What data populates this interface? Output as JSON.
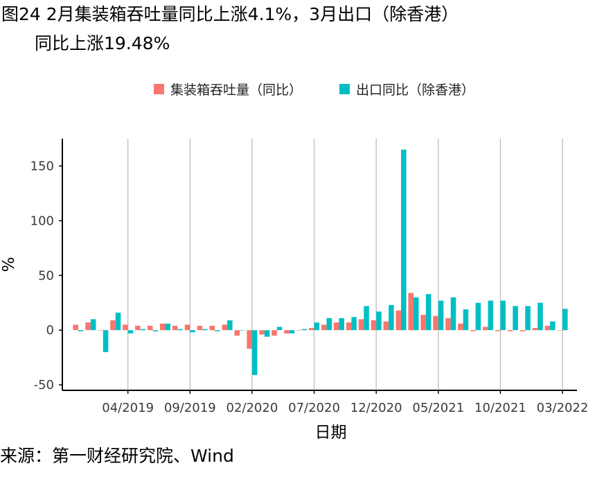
{
  "figure": {
    "title_line1": "图24 2月集装箱吞吐量同比上涨4.1%，3月出口（除香港）",
    "title_line2": "同比上涨19.48%",
    "source": "来源：第一财经研究院、Wind"
  },
  "chart_data": {
    "type": "bar",
    "xlabel": "日期",
    "ylabel": "%",
    "ylim": [
      -55,
      175
    ],
    "y_ticks": [
      -50,
      0,
      50,
      100,
      150
    ],
    "x_tick_labels": [
      "04/2019",
      "09/2019",
      "02/2020",
      "07/2020",
      "12/2020",
      "05/2021",
      "10/2021",
      "03/2022"
    ],
    "x_tick_months": [
      "2019-04",
      "2019-09",
      "2020-02",
      "2020-07",
      "2020-12",
      "2021-05",
      "2021-10",
      "2022-03"
    ],
    "grid": "vertical lines at x ticks",
    "legend_position": "top",
    "months": [
      "2018-12",
      "2019-01",
      "2019-02",
      "2019-03",
      "2019-04",
      "2019-05",
      "2019-06",
      "2019-07",
      "2019-08",
      "2019-09",
      "2019-10",
      "2019-11",
      "2019-12",
      "2020-01",
      "2020-02",
      "2020-03",
      "2020-04",
      "2020-05",
      "2020-06",
      "2020-07",
      "2020-08",
      "2020-09",
      "2020-10",
      "2020-11",
      "2020-12",
      "2021-01",
      "2021-02",
      "2021-03",
      "2021-04",
      "2021-05",
      "2021-06",
      "2021-07",
      "2021-08",
      "2021-09",
      "2021-10",
      "2021-11",
      "2021-12",
      "2022-01",
      "2022-02",
      "2022-03"
    ],
    "series": [
      {
        "name": "集装箱吞吐量（同比）",
        "color": "#F8766D",
        "values": [
          5,
          7,
          0,
          9,
          5,
          4,
          4,
          6,
          4,
          5,
          4,
          4,
          5,
          -5,
          -17,
          -4,
          -5,
          -3,
          0,
          2,
          5,
          7,
          7,
          10,
          9,
          8,
          18,
          34,
          14,
          13,
          11,
          6,
          -1,
          3,
          -1,
          -1,
          -1,
          2,
          4,
          0
        ]
      },
      {
        "name": "出口同比（除香港）",
        "color": "#00BFC4",
        "values": [
          -1,
          10,
          -20,
          16,
          -3,
          1,
          -1,
          6,
          1,
          -2,
          1,
          -1,
          9,
          0,
          -41,
          -6,
          3,
          -3,
          1,
          7,
          11,
          11,
          12,
          22,
          17,
          23,
          165,
          30,
          33,
          27,
          30,
          19,
          25,
          27,
          27,
          22,
          22,
          25,
          8,
          19.5
        ]
      }
    ]
  }
}
